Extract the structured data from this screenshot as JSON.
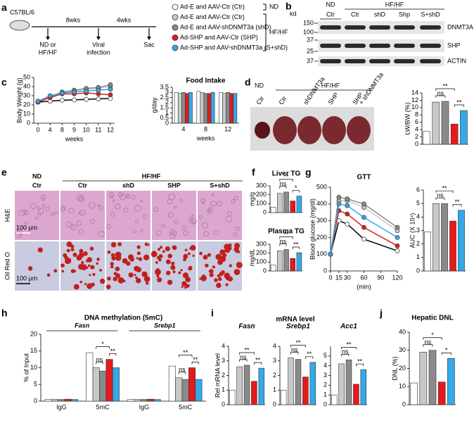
{
  "panel_labels": [
    "a",
    "b",
    "c",
    "d",
    "e",
    "f",
    "g",
    "h",
    "i",
    "j"
  ],
  "schematic": {
    "strain": "C57BL/6",
    "periods": [
      "8wks",
      "4wks"
    ],
    "events": [
      [
        "ND or",
        "HF/HF"
      ],
      [
        "Viral",
        "infection"
      ],
      [
        "Sac"
      ]
    ],
    "legend": [
      {
        "label": "Ad-E and AAV-Ctr (Ctr)",
        "color": "#ffffff"
      },
      {
        "label": "Ad-E and AAV-Ctr (Ctr)",
        "color": "#c8c8c8"
      },
      {
        "label": "Ad-E and AAV-shDNMT3a (shD)",
        "color": "#8a8a8a"
      },
      {
        "label": "Ad-SHP and AAV-Ctr (SHP)",
        "color": "#e41a1c"
      },
      {
        "label": "Ad-SHP and AAV-shDNMT3a (S+shD)",
        "color": "#35a8e8"
      }
    ],
    "groups": [
      "ND",
      "HF/HF"
    ]
  },
  "blot": {
    "unit": "kd",
    "groups": [
      "ND",
      "HF/HF"
    ],
    "lanes": [
      "Ctr",
      "Ctr",
      "shD",
      "Shp",
      "S+shD"
    ],
    "rows": [
      {
        "name": "DNMT3A",
        "markers": [
          150,
          100
        ]
      },
      {
        "name": "SHP",
        "markers": [
          37,
          25
        ]
      },
      {
        "name": "ACTIN",
        "markers": [
          37
        ]
      }
    ]
  },
  "liver_photo": {
    "groups": [
      "ND",
      "HF/HF"
    ],
    "labels": [
      [
        "Ctr"
      ],
      [
        "Ctr"
      ],
      [
        "shDNMT3a"
      ],
      [
        "SHP"
      ],
      [
        "SHP",
        "+ shDNMT3a"
      ]
    ]
  },
  "histology": {
    "groups": [
      "ND",
      "HF/HF"
    ],
    "columns": [
      "Ctr",
      "Ctr",
      "shD",
      "SHP",
      "S+shD"
    ],
    "rows": [
      "H&E",
      "Oil Red O"
    ],
    "scale": "100 μm"
  },
  "headings": [
    "mRNA level"
  ],
  "chart_data": [
    {
      "type": "line",
      "ylabel": "Body Weight (g)",
      "xlabel": "weeks",
      "categories": [
        "0",
        "4",
        "8",
        "9",
        "10",
        "11",
        "12"
      ],
      "ylim": [
        0,
        50
      ],
      "yticks": [
        0,
        10,
        20,
        30,
        40,
        50
      ],
      "series": [
        {
          "color": "#ffffff",
          "values": [
            23,
            24,
            25,
            25.5,
            26,
            26.5,
            27
          ]
        },
        {
          "color": "#c8c8c8",
          "values": [
            23,
            28,
            33,
            35,
            37,
            38,
            40
          ]
        },
        {
          "color": "#8a8a8a",
          "values": [
            23,
            29,
            34,
            36,
            38,
            39,
            42
          ]
        },
        {
          "color": "#e41a1c",
          "values": [
            23,
            28,
            32,
            32,
            33,
            32,
            31
          ]
        },
        {
          "color": "#35a8e8",
          "values": [
            24,
            30,
            33,
            34,
            35,
            36,
            37
          ]
        }
      ]
    },
    {
      "type": "bar",
      "title": "Food Intake",
      "ylabel": "g/day",
      "xlabel": "weeks",
      "categories": [
        "4",
        "8",
        "12"
      ],
      "ylim": [
        0,
        3.5
      ],
      "yticks": [
        0,
        0.5,
        1,
        1.5,
        2,
        2.5,
        3,
        3.5
      ],
      "series": [
        {
          "color": "#ffffff",
          "values": [
            3.0,
            3.1,
            3.0
          ]
        },
        {
          "color": "#c8c8c8",
          "values": [
            2.9,
            3.0,
            2.9
          ]
        },
        {
          "color": "#8a8a8a",
          "values": [
            3.0,
            2.9,
            3.0
          ]
        },
        {
          "color": "#e41a1c",
          "values": [
            2.9,
            2.9,
            2.9
          ]
        },
        {
          "color": "#35a8e8",
          "values": [
            3.0,
            3.0,
            2.9
          ]
        }
      ]
    },
    {
      "type": "bar",
      "ylabel": "LW/BW (%)",
      "values": [
        3.5,
        11.5,
        11.7,
        5.5,
        9.2
      ],
      "colors": [
        "#ffffff",
        "#c8c8c8",
        "#8a8a8a",
        "#e41a1c",
        "#35a8e8"
      ],
      "ylim": [
        0,
        14
      ],
      "yticks": [
        0,
        2,
        4,
        6,
        8,
        10,
        12,
        14
      ],
      "annotations": [
        "**",
        "ns",
        "**"
      ]
    },
    {
      "type": "bar",
      "title": "Liver TG",
      "ylabel": "mg/g",
      "values": [
        60,
        215,
        230,
        130,
        185
      ],
      "colors": [
        "#ffffff",
        "#c8c8c8",
        "#8a8a8a",
        "#e41a1c",
        "#35a8e8"
      ],
      "ylim": [
        0,
        300
      ],
      "yticks": [
        0,
        100,
        200,
        300
      ],
      "annotations": [
        "**",
        "ns",
        "*"
      ]
    },
    {
      "type": "bar",
      "title": "Plasma TG",
      "ylabel": "mg/dL",
      "values": [
        65,
        225,
        240,
        140,
        205
      ],
      "colors": [
        "#ffffff",
        "#c8c8c8",
        "#8a8a8a",
        "#e41a1c",
        "#35a8e8"
      ],
      "ylim": [
        0,
        300
      ],
      "yticks": [
        0,
        100,
        200,
        300
      ],
      "annotations": [
        "**",
        "ns",
        "**"
      ]
    },
    {
      "type": "line",
      "title": "GTT",
      "ylabel": "Blood glucose (mg/dl)",
      "xlabel": "(min)",
      "x": [
        0,
        15,
        30,
        60,
        120
      ],
      "xlim": [
        0,
        120
      ],
      "xticks": [
        0,
        15,
        30,
        60,
        90,
        120
      ],
      "ylim": [
        0,
        500
      ],
      "yticks": [
        0,
        100,
        200,
        300,
        400,
        500
      ],
      "series": [
        {
          "color": "#ffffff",
          "values": [
            100,
            300,
            280,
            190,
            120
          ]
        },
        {
          "color": "#c8c8c8",
          "values": [
            100,
            420,
            420,
            380,
            240
          ]
        },
        {
          "color": "#8a8a8a",
          "values": [
            100,
            440,
            430,
            400,
            260
          ]
        },
        {
          "color": "#e41a1c",
          "values": [
            100,
            360,
            340,
            260,
            150
          ]
        },
        {
          "color": "#35a8e8",
          "values": [
            100,
            400,
            390,
            320,
            200
          ]
        }
      ]
    },
    {
      "type": "bar",
      "ylabel": "AUC (X 10⁴)",
      "values": [
        2.9,
        5.0,
        5.0,
        3.7,
        4.5
      ],
      "colors": [
        "#ffffff",
        "#c8c8c8",
        "#8a8a8a",
        "#e41a1c",
        "#35a8e8"
      ],
      "ylim": [
        0,
        6
      ],
      "yticks": [
        0,
        1,
        2,
        3,
        4,
        5,
        6
      ],
      "annotations": [
        "**",
        "ns",
        "**"
      ]
    },
    {
      "type": "bar",
      "title": "DNA methylation (5mC)",
      "ylabel": "% of Input",
      "groups": [
        "Fasn",
        "Srebp1"
      ],
      "categories": [
        "IgG",
        "5mC",
        "IgG",
        "5mC"
      ],
      "ylim": [
        0,
        20
      ],
      "yticks": [
        0,
        5,
        10,
        15,
        20
      ],
      "series": [
        {
          "color": "#ffffff",
          "values": [
            0.5,
            14.5,
            0.5,
            10.5
          ]
        },
        {
          "color": "#c8c8c8",
          "values": [
            0.5,
            10,
            0.5,
            7
          ]
        },
        {
          "color": "#8a8a8a",
          "values": [
            0.5,
            9,
            0.5,
            6.5
          ]
        },
        {
          "color": "#e41a1c",
          "values": [
            0.6,
            12.5,
            0.6,
            10
          ]
        },
        {
          "color": "#35a8e8",
          "values": [
            0.5,
            10,
            0.5,
            6.5
          ]
        }
      ],
      "annotations": [
        [],
        [
          "*",
          "ns",
          "**"
        ],
        [],
        [
          "**",
          "ns",
          "**"
        ]
      ]
    },
    {
      "type": "bar",
      "title": "Fasn",
      "ylabel": "Rel mRNA level",
      "values": [
        1,
        2.6,
        2.7,
        1.6,
        2.5
      ],
      "colors": [
        "#ffffff",
        "#c8c8c8",
        "#8a8a8a",
        "#e41a1c",
        "#35a8e8"
      ],
      "ylim": [
        0,
        4
      ],
      "yticks": [
        0,
        1,
        2,
        3,
        4
      ],
      "annotations": [
        "**",
        "ns",
        "**"
      ]
    },
    {
      "type": "bar",
      "title": "Srebp1",
      "values": [
        1,
        3.2,
        3.1,
        1.9,
        2.9
      ],
      "colors": [
        "#ffffff",
        "#c8c8c8",
        "#8a8a8a",
        "#e41a1c",
        "#35a8e8"
      ],
      "ylim": [
        0,
        4
      ],
      "yticks": [
        0,
        1,
        2,
        3,
        4
      ],
      "annotations": [
        "**",
        "ns",
        "**"
      ]
    },
    {
      "type": "bar",
      "title": "Acc1",
      "values": [
        1,
        4.2,
        4.6,
        2.1,
        3.6
      ],
      "colors": [
        "#ffffff",
        "#c8c8c8",
        "#8a8a8a",
        "#e41a1c",
        "#35a8e8"
      ],
      "ylim": [
        0,
        6
      ],
      "yticks": [
        0,
        1,
        2,
        3,
        4,
        5
      ],
      "annotations": [
        "**",
        "ns",
        "**"
      ]
    },
    {
      "type": "bar",
      "title": "Hepatic DNL",
      "ylabel": "DNL (%)",
      "values": [
        12,
        29,
        30,
        12.5,
        25.5
      ],
      "colors": [
        "#ffffff",
        "#c8c8c8",
        "#8a8a8a",
        "#e41a1c",
        "#35a8e8"
      ],
      "ylim": [
        0,
        40
      ],
      "yticks": [
        0,
        10,
        20,
        30,
        40
      ],
      "annotations": [
        "*",
        "ns",
        "*"
      ]
    }
  ]
}
